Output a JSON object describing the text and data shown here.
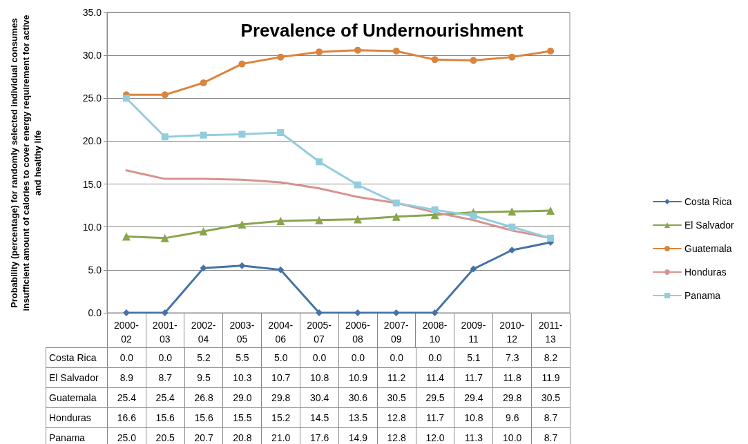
{
  "chart_data": {
    "type": "line",
    "title": "Prevalence of Undernourishment",
    "ylabel": "Probability (percentage) for randomly selected individual consumes insufficient  amount of calories to cover energy requirement for active and healthy life",
    "categories": [
      "2000-02",
      "2001-03",
      "2002-04",
      "2003-05",
      "2004-06",
      "2005-07",
      "2006-08",
      "2007-09",
      "2008-10",
      "2009-11",
      "2010-12",
      "2011-13"
    ],
    "series": [
      {
        "name": "Costa Rica",
        "color": "#4572a7",
        "marker": "diamond",
        "values": [
          0.0,
          0.0,
          5.2,
          5.5,
          5.0,
          0.0,
          0.0,
          0.0,
          0.0,
          5.1,
          7.3,
          8.2
        ],
        "value_labels": [
          "0.0",
          "0.0",
          "5.2",
          "5.5",
          "5.0",
          "0.0",
          "0.0",
          "0.0",
          "0.0",
          "5.1",
          "7.3",
          "8.2"
        ]
      },
      {
        "name": "El Salvador",
        "color": "#89a54e",
        "marker": "triangle",
        "values": [
          8.9,
          8.7,
          9.5,
          10.3,
          10.7,
          10.8,
          10.9,
          11.2,
          11.4,
          11.7,
          11.8,
          11.9
        ],
        "value_labels": [
          "8.9",
          "8.7",
          "9.5",
          "10.3",
          "10.7",
          "10.8",
          "10.9",
          "11.2",
          "11.4",
          "11.7",
          "11.8",
          "11.9"
        ]
      },
      {
        "name": "Guatemala",
        "color": "#db843d",
        "marker": "circle",
        "values": [
          25.4,
          25.4,
          26.8,
          29.0,
          29.8,
          30.4,
          30.6,
          30.5,
          29.5,
          29.4,
          29.8,
          30.5
        ],
        "value_labels": [
          "25.4",
          "25.4",
          "26.8",
          "29.0",
          "29.8",
          "30.4",
          "30.6",
          "30.5",
          "29.5",
          "29.4",
          "29.8",
          "30.5"
        ]
      },
      {
        "name": "Honduras",
        "color": "#d9928f",
        "marker": "none",
        "values": [
          16.6,
          15.6,
          15.6,
          15.5,
          15.2,
          14.5,
          13.5,
          12.8,
          11.7,
          10.8,
          9.6,
          8.7
        ],
        "value_labels": [
          "16.6",
          "15.6",
          "15.6",
          "15.5",
          "15.2",
          "14.5",
          "13.5",
          "12.8",
          "11.7",
          "10.8",
          "9.6",
          "8.7"
        ]
      },
      {
        "name": "Panama",
        "color": "#93cddd",
        "marker": "square",
        "values": [
          25.0,
          20.5,
          20.7,
          20.8,
          21.0,
          17.6,
          14.9,
          12.8,
          12.0,
          11.3,
          10.0,
          8.7
        ],
        "value_labels": [
          "25.0",
          "20.5",
          "20.7",
          "20.8",
          "21.0",
          "17.6",
          "14.9",
          "12.8",
          "12.0",
          "11.3",
          "10.0",
          "8.7"
        ]
      }
    ],
    "ylim": [
      0,
      35
    ],
    "yticks": [
      {
        "value": 0,
        "label": "0.0"
      },
      {
        "value": 5,
        "label": "5.0"
      },
      {
        "value": 10,
        "label": "10.0"
      },
      {
        "value": 15,
        "label": "15.0"
      },
      {
        "value": 20,
        "label": "20.0"
      },
      {
        "value": 25,
        "label": "25.0"
      },
      {
        "value": 30,
        "label": "30.0"
      },
      {
        "value": 35,
        "label": "35.0"
      }
    ],
    "grid": "y",
    "legend": "right",
    "line_style": "solid"
  }
}
